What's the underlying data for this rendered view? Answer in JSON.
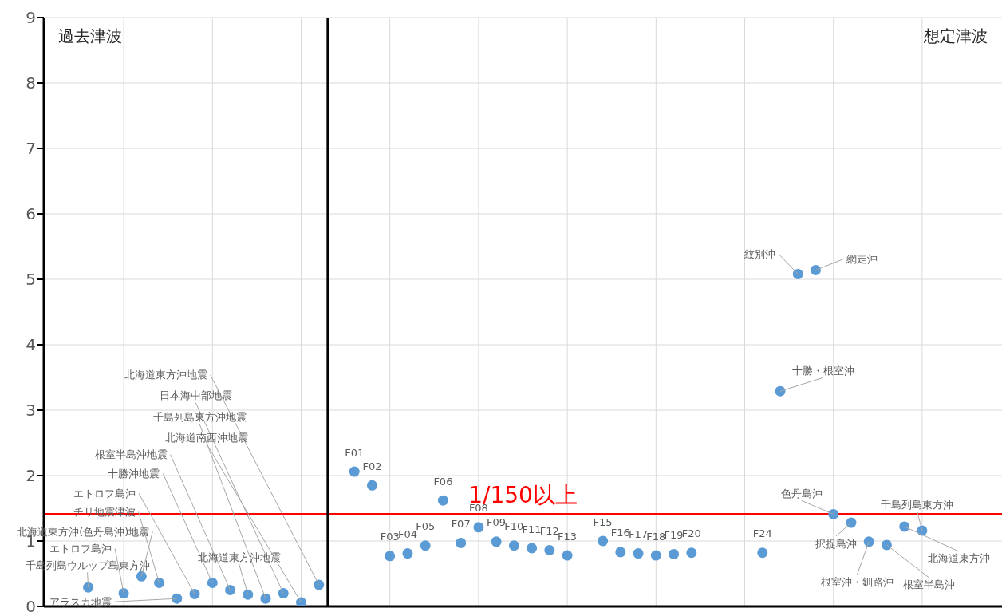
{
  "chart_data": {
    "type": "scatter",
    "categories": [
      null,
      null,
      null,
      null,
      null,
      null,
      null,
      null,
      null,
      null,
      null,
      null,
      null,
      null,
      null,
      null,
      null,
      null,
      null,
      null,
      null,
      null,
      null,
      null,
      null,
      null,
      null,
      null,
      null,
      null,
      null,
      null,
      null,
      null,
      null,
      null,
      null,
      null,
      null,
      null,
      null,
      null,
      null,
      null,
      null,
      null,
      null,
      null,
      null,
      null,
      null,
      null,
      null,
      null
    ],
    "series": [
      {
        "color": "#5b9bd5",
        "values": [
          null,
          null,
          0.29,
          null,
          0.2,
          0.46,
          0.36,
          0.12,
          0.19,
          0.36,
          0.25,
          0.18,
          0.12,
          0.2,
          0.06,
          0.33,
          null,
          2.06,
          1.85,
          0.77,
          0.81,
          0.93,
          1.62,
          0.97,
          1.21,
          0.99,
          0.93,
          0.89,
          0.86,
          0.78,
          null,
          1.0,
          0.83,
          0.81,
          0.78,
          0.8,
          0.82,
          null,
          null,
          null,
          0.82,
          3.29,
          5.08,
          5.14,
          1.41,
          1.28,
          0.99,
          0.94,
          1.22,
          1.16,
          null,
          null,
          null,
          null
        ]
      }
    ],
    "ylim": [
      0,
      9
    ],
    "yticks": [
      0,
      1,
      2,
      3,
      4,
      5,
      6,
      7,
      8,
      9
    ],
    "tick_labels": "y",
    "grid": true,
    "marker": "circle",
    "ref_lines": [
      {
        "axis": "y",
        "value": 1.41,
        "label": "1/150以上",
        "color": "#ff0000"
      }
    ],
    "annotations": [
      "過去津波",
      "想定津波",
      "千島列島ウルップ島東方沖",
      "エトロフ島沖",
      "北海道東方沖(色丹島沖)地震",
      "チリ地震津波",
      "アラスカ地震",
      "エトロフ島沖",
      "十勝沖地震",
      "根室半島沖地震",
      "北海道東方沖地震",
      "千島列島東方沖地震",
      "日本海中部地震",
      "北海道南西沖地震",
      "北海道東方沖地震",
      "F01",
      "F02",
      "F03",
      "F04",
      "F05",
      "F06",
      "F07",
      "F08",
      "F09",
      "F10",
      "F11",
      "F12",
      "F13",
      "F15",
      "F16",
      "F17",
      "F18",
      "F19",
      "F20",
      "F24",
      "十勝・根室沖",
      "紋別沖",
      "網走沖",
      "色丹島沖",
      "択捉島沖",
      "根室沖・釧路沖",
      "根室半島沖",
      "北海道東方沖",
      "千島列島東方沖"
    ]
  }
}
